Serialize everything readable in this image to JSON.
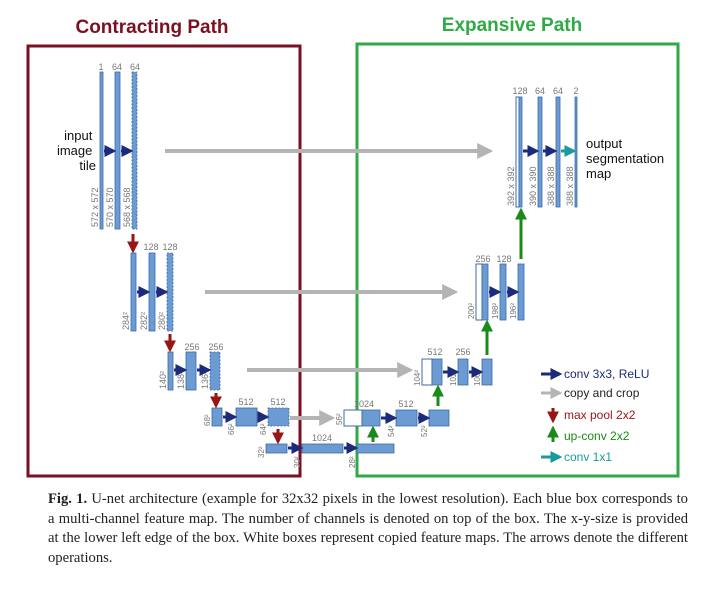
{
  "titles": {
    "contracting": "Contracting Path",
    "expansive": "Expansive Path"
  },
  "colors": {
    "contracting_frame": "#7a1022",
    "expansive_frame": "#2faa44",
    "feature_map": "#6b9bd2",
    "conv_arrow": "#1b2a7a",
    "copy_arrow": "#b4b4b4",
    "pool_arrow": "#9a1414",
    "upconv_arrow": "#1a8a1a",
    "conv1x1_arrow": "#1a9a9a"
  },
  "input_label": [
    "input",
    "image",
    "tile"
  ],
  "output_label": [
    "output",
    "segmentation",
    "map"
  ],
  "channels": {
    "in1": "1",
    "c1a": "64",
    "c1b": "64",
    "c2a": "128",
    "c2b": "128",
    "c3a": "256",
    "c3b": "256",
    "c4a": "512",
    "c4b": "512",
    "c5": "1024",
    "e4a": "1024",
    "e4b": "512",
    "e4c": "512",
    "e3a": "512",
    "e3b": "256",
    "e3c": "256",
    "e2a": "256",
    "e2b": "128",
    "e2c": "128",
    "e1a": "128",
    "e1b": "64",
    "e1c": "64",
    "out": "2"
  },
  "sizes": {
    "in1": "572 x 572",
    "c1a": "570 x 570",
    "c1b": "568 x 568",
    "c2a": "284²",
    "c2b": "282²",
    "c2c": "280²",
    "c3a": "140²",
    "c3b": "138²",
    "c3c": "136²",
    "c4a": "68²",
    "c4b": "66²",
    "c4c": "64²",
    "c5a": "32²",
    "c5b": "30²",
    "c5c": "28²",
    "e4a": "56²",
    "e4b": "54²",
    "e4c": "52²",
    "e3a": "104²",
    "e3b": "102²",
    "e3c": "100²",
    "e2a": "200²",
    "e2b": "198²",
    "e2c": "196²",
    "e1a": "392 x 392",
    "e1b": "390 x 390",
    "e1c": "388 x 388",
    "out": "388 x 388"
  },
  "legend": {
    "conv": "conv 3x3, ReLU",
    "copy": "copy and crop",
    "pool": "max pool 2x2",
    "upconv": "up-conv 2x2",
    "conv1x1": "conv 1x1"
  },
  "caption": {
    "label": "Fig. 1.",
    "text": "U-net architecture (example for 32x32 pixels in the lowest resolution). Each blue box corresponds to a multi-channel feature map. The number of channels is denoted on top of the box. The x-y-size is provided at the lower left edge of the box. White boxes represent copied feature maps. The arrows denote the different operations."
  }
}
